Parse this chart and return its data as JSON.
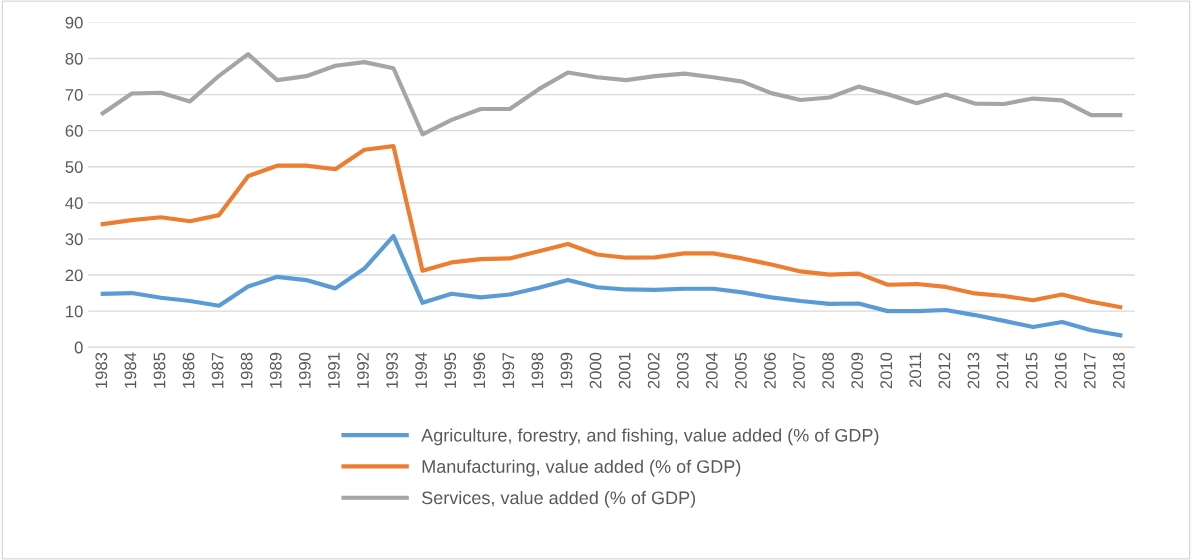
{
  "chart_data": {
    "type": "line",
    "categories": [
      "1983",
      "1984",
      "1985",
      "1986",
      "1987",
      "1988",
      "1989",
      "1990",
      "1991",
      "1992",
      "1993",
      "1994",
      "1995",
      "1996",
      "1997",
      "1998",
      "1999",
      "2000",
      "2001",
      "2002",
      "2003",
      "2004",
      "2005",
      "2006",
      "2007",
      "2008",
      "2009",
      "2010",
      "2011",
      "2012",
      "2013",
      "2014",
      "2015",
      "2016",
      "2017",
      "2018"
    ],
    "series": [
      {
        "name": "Agriculture, forestry, and fishing, value added (% of GDP)",
        "color": "#5b9bd5",
        "values": [
          14.8,
          15,
          13.7,
          12.8,
          11.5,
          16.8,
          19.5,
          18.6,
          16.3,
          21.8,
          30.8,
          12.3,
          14.8,
          13.8,
          14.6,
          16.5,
          18.6,
          16.6,
          16,
          15.9,
          16.2,
          16.2,
          15.2,
          13.8,
          12.8,
          12,
          12.1,
          10,
          10,
          10.3,
          8.9,
          7.3,
          5.6,
          7,
          4.7,
          3.3
        ]
      },
      {
        "name": "Manufacturing, value added (% of GDP)",
        "color": "#ed7d31",
        "values": [
          34.1,
          35.2,
          36,
          34.9,
          36.6,
          47.4,
          50.3,
          50.3,
          49.3,
          54.7,
          55.7,
          21.2,
          23.5,
          24.4,
          24.6,
          26.6,
          28.6,
          25.7,
          24.8,
          24.9,
          26,
          26,
          24.6,
          22.9,
          21,
          20.1,
          20.4,
          17.3,
          17.5,
          16.7,
          14.9,
          14.2,
          13,
          14.6,
          12.6,
          11.1
        ]
      },
      {
        "name": "Services, value added (% of GDP)",
        "color": "#a5a5a5",
        "values": [
          64.8,
          70.3,
          70.5,
          68.1,
          75.2,
          81.2,
          74,
          75.1,
          78,
          79,
          77.3,
          59,
          63,
          66,
          66,
          71.5,
          76.1,
          74.8,
          74,
          75.1,
          75.8,
          74.8,
          73.6,
          70.4,
          68.5,
          69.2,
          72.2,
          70.1,
          67.6,
          70,
          67.5,
          67.4,
          68.9,
          68.4,
          64.3,
          64.3
        ]
      }
    ],
    "ylim": [
      0,
      90
    ],
    "yticks": [
      0,
      10,
      20,
      30,
      40,
      50,
      60,
      70,
      80,
      90
    ],
    "grid": "y",
    "legend": "bottom",
    "marker": "none",
    "line_style": "solid"
  }
}
